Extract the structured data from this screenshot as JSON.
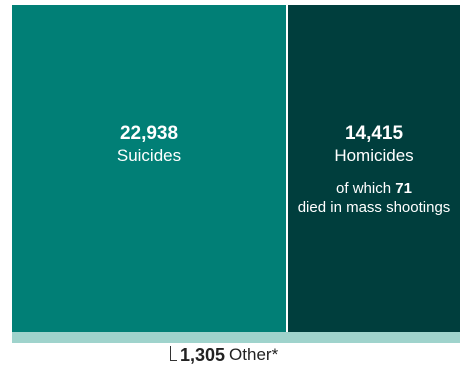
{
  "chart_data": {
    "type": "treemap",
    "title": "",
    "items": [
      {
        "value": 22938,
        "value_label": "22,938",
        "label": "Suicides",
        "color": "#017f76"
      },
      {
        "value": 14415,
        "value_label": "14,415",
        "label": "Homicides",
        "color": "#003e3d",
        "note": {
          "prefix": "of which",
          "number": "71",
          "suffix": "died in mass shootings"
        }
      },
      {
        "value": 1305,
        "value_label": "1,305",
        "label": "Other*",
        "color": "#9fd3cc"
      }
    ]
  }
}
